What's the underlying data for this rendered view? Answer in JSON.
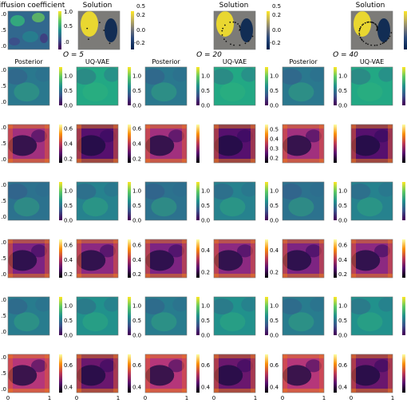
{
  "chart_data": {
    "type": "heatmap",
    "column_titles": [
      "Posterior",
      "UQ-VAE",
      "Posterior",
      "UQ-VAE",
      "Posterior",
      "UQ-VAE"
    ],
    "group_labels": [
      "O = 5",
      "O = 20",
      "O = 40"
    ],
    "top_row": {
      "diffusion_title": "iffusion coefficient",
      "solution_title": "Solution",
      "diffusion_cbar_ticks": [
        "1.0",
        "0.5",
        ".0"
      ],
      "solution_cbar_ticks": [
        "0.5",
        "0.2",
        "0.0",
        "-0.2"
      ],
      "diffusion_ytick_labels": [
        ".0",
        ".5",
        ".0"
      ]
    },
    "x_tick_labels": [
      "0",
      "1"
    ],
    "y_tick_labels": [
      ".0",
      ".5",
      ".0"
    ],
    "row_kinds": [
      "mean",
      "std",
      "mean",
      "std",
      "mean",
      "std"
    ],
    "colormaps": {
      "mean": "viridis",
      "std": "inferno",
      "solution": "cividis-blue-yellow"
    },
    "colorbar_ticks": [
      [
        [
          "1.0",
          "0.5",
          "0.0"
        ],
        [
          "1.0",
          "0.5",
          "0.0"
        ],
        [
          "1.0",
          "0.5",
          "0.0"
        ],
        [
          "1.0",
          "0.5",
          "0.0"
        ],
        [
          "1.0",
          "0.5",
          "0.0"
        ],
        [
          "1.0",
          "0.5"
        ]
      ],
      [
        [
          "0.6",
          "0.4",
          "0.2"
        ],
        [
          "0.6",
          "0.4",
          "0.2"
        ],
        [],
        [
          "0.5",
          "0.4",
          "0.3",
          "0.2"
        ],
        [],
        [
          "0.8",
          "0.6",
          "0.4",
          "0.2"
        ]
      ],
      [
        [
          "1.0",
          "0.5",
          "0.0"
        ],
        [
          "1.0",
          "0.5",
          "0.0"
        ],
        [
          "1.0",
          "0.5",
          "0.0"
        ],
        [
          "1.0",
          "0.5",
          "0.0"
        ],
        [
          "1.0",
          "0.5",
          "0.0"
        ],
        [
          "1.0",
          "0.5"
        ]
      ],
      [
        [
          "0.6",
          "0.4",
          "0.2"
        ],
        [
          "0.6",
          "0.4",
          "0.2"
        ],
        [
          "0.4",
          "0.2"
        ],
        [
          "0.4",
          "0.2"
        ],
        [
          "0.6",
          "0.4",
          "0.2"
        ],
        [
          "0.4",
          "0.2"
        ]
      ],
      [
        [
          "1.0",
          "0.5",
          "0.0"
        ],
        [
          "1.0",
          "0.5",
          "0.0"
        ],
        [
          "1.0",
          "0.5",
          "0.0"
        ],
        [
          "1.0",
          "0.5",
          "0.0"
        ],
        [
          "1.0",
          "0.5",
          "0.0"
        ],
        [
          "1.0",
          "0.5"
        ]
      ],
      [
        [
          "0.6",
          "0.4"
        ],
        [
          "0.6",
          "0.4"
        ],
        [
          "0.6",
          "0.4"
        ],
        [
          "0.6",
          "0.4"
        ],
        [
          "0.6",
          "0.4"
        ],
        [
          "0.6",
          "0.5",
          "0.4",
          "0.3"
        ]
      ]
    ],
    "colorbar_ranges": [
      [
        [
          0,
          1.3
        ],
        [
          0,
          1.3
        ],
        [
          0,
          1.3
        ],
        [
          0,
          1.3
        ],
        [
          0,
          1.3
        ],
        [
          0,
          1.3
        ]
      ],
      [
        [
          0.15,
          0.65
        ],
        [
          0.15,
          0.65
        ],
        [
          0.15,
          0.65
        ],
        [
          0.15,
          0.55
        ],
        [
          0.15,
          0.65
        ],
        [
          0.15,
          0.85
        ]
      ],
      [
        [
          0,
          1.3
        ],
        [
          0,
          1.3
        ],
        [
          0,
          1.3
        ],
        [
          0,
          1.3
        ],
        [
          0,
          1.3
        ],
        [
          0,
          1.3
        ]
      ],
      [
        [
          0.15,
          0.68
        ],
        [
          0.15,
          0.68
        ],
        [
          0.15,
          0.5
        ],
        [
          0.15,
          0.5
        ],
        [
          0.15,
          0.68
        ],
        [
          0.15,
          0.5
        ]
      ],
      [
        [
          0,
          1.3
        ],
        [
          0,
          1.3
        ],
        [
          0,
          1.3
        ],
        [
          0,
          1.3
        ],
        [
          0,
          1.3
        ],
        [
          0,
          1.3
        ]
      ],
      [
        [
          0.35,
          0.7
        ],
        [
          0.35,
          0.7
        ],
        [
          0.35,
          0.7
        ],
        [
          0.35,
          0.7
        ],
        [
          0.35,
          0.7
        ],
        [
          0.25,
          0.65
        ]
      ]
    ]
  }
}
